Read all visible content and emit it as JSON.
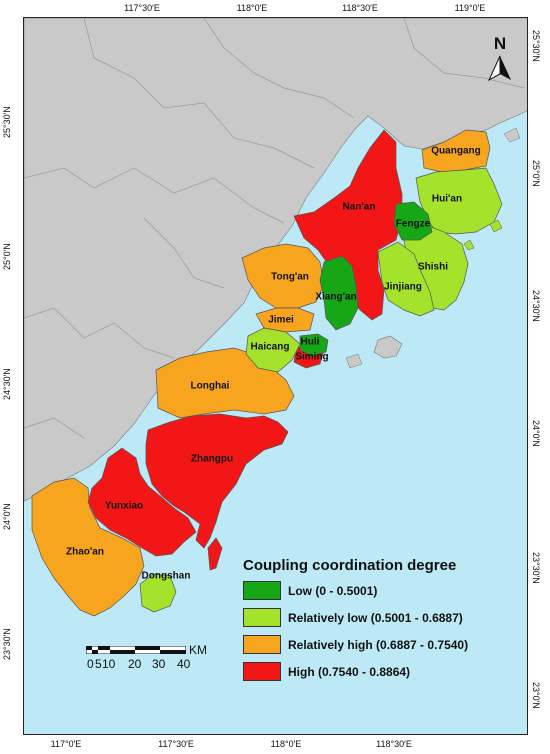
{
  "graticule": {
    "top": [
      "117°30′E",
      "118°0′E",
      "118°30′E",
      "119°0′E"
    ],
    "bottom": [
      "117°0′E",
      "117°30′E",
      "118°0′E",
      "118°30′E"
    ],
    "left": [
      "25°30′N",
      "25°0′N",
      "24°30′N",
      "24°0′N",
      "23°30′N"
    ],
    "right": [
      "25°30′N",
      "25°0′N",
      "24°30′N",
      "24°0′N",
      "23°30′N",
      "23°0′N"
    ]
  },
  "north_arrow": {
    "label": "N"
  },
  "places": [
    {
      "name": "Quangang",
      "category": "relatively_high"
    },
    {
      "name": "Nan'an",
      "category": "high"
    },
    {
      "name": "Hui'an",
      "category": "relatively_low"
    },
    {
      "name": "Fengze",
      "category": "low"
    },
    {
      "name": "Tong'an",
      "category": "relatively_high"
    },
    {
      "name": "Shishi",
      "category": "relatively_low"
    },
    {
      "name": "Xiang'an",
      "category": "low"
    },
    {
      "name": "Jinjiang",
      "category": "relatively_low"
    },
    {
      "name": "Jimei",
      "category": "relatively_high"
    },
    {
      "name": "Haicang",
      "category": "relatively_low"
    },
    {
      "name": "Huli",
      "category": "low"
    },
    {
      "name": "Siming",
      "category": "high"
    },
    {
      "name": "Longhai",
      "category": "relatively_high"
    },
    {
      "name": "Zhangpu",
      "category": "high"
    },
    {
      "name": "Yunxiao",
      "category": "high"
    },
    {
      "name": "Zhao'an",
      "category": "relatively_high"
    },
    {
      "name": "Dongshan",
      "category": "relatively_low"
    }
  ],
  "legend": {
    "title": "Coupling coordination degree",
    "items": [
      {
        "key": "low",
        "label": "Low (0 - 0.5001)",
        "color": "#16a616"
      },
      {
        "key": "relatively_low",
        "label": "Relatively low (0.5001 - 0.6887)",
        "color": "#a4e22b"
      },
      {
        "key": "relatively_high",
        "label": "Relatively high (0.6887 - 0.7540)",
        "color": "#f7a41f"
      },
      {
        "key": "high",
        "label": "High (0.7540 - 0.8864)",
        "color": "#f21616"
      }
    ]
  },
  "scale": {
    "unit": "KM",
    "ticks": [
      "0",
      "5",
      "10",
      "20",
      "30",
      "40"
    ]
  },
  "colors": {
    "sea": "#bde9f6",
    "land": "#c9c9c9",
    "boundary": "#777777"
  }
}
